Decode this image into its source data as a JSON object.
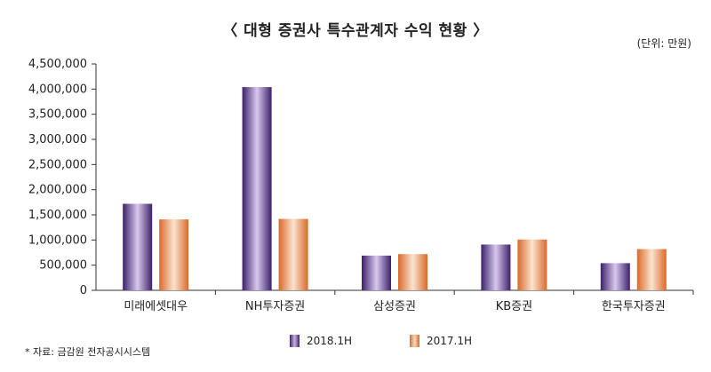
{
  "chart_data": {
    "type": "bar",
    "title": "〈 대형 증권사 특수관계자 수익 현황 〉",
    "unit_label": "(단위: 만원)",
    "source": "* 자료: 금감원 전자공시시스템",
    "categories": [
      "미래에셋대우",
      "NH투자증권",
      "삼성증권",
      "KB증권",
      "한국투자증권"
    ],
    "series": [
      {
        "name": "2018.1H",
        "values": [
          1720000,
          4040000,
          690000,
          910000,
          540000
        ],
        "color": "#4b2a7b"
      },
      {
        "name": "2017.1H",
        "values": [
          1410000,
          1420000,
          720000,
          1010000,
          820000
        ],
        "color": "#e0773a"
      }
    ],
    "ylim": [
      0,
      4500000
    ],
    "yticks": [
      0,
      500000,
      1000000,
      1500000,
      2000000,
      2500000,
      3000000,
      3500000,
      4000000,
      4500000
    ],
    "ytick_labels": [
      "0",
      "500,000",
      "1,000,000",
      "1,500,000",
      "2,000,000",
      "2,500,000",
      "3,000,000",
      "3,500,000",
      "4,000,000",
      "4,500,000"
    ],
    "grid": false,
    "legend_position": "bottom-center"
  }
}
